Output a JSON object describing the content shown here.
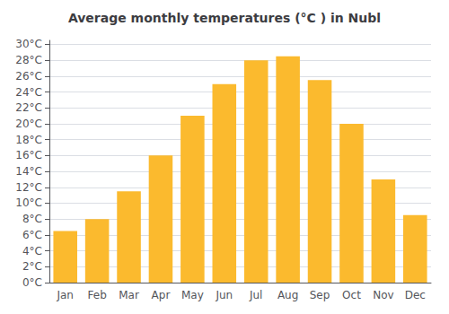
{
  "chart_data": {
    "type": "bar",
    "title": "Average monthly temperatures (°C ) in Nubl",
    "categories": [
      "Jan",
      "Feb",
      "Mar",
      "Apr",
      "May",
      "Jun",
      "Jul",
      "Aug",
      "Sep",
      "Oct",
      "Nov",
      "Dec"
    ],
    "values": [
      6.5,
      8.0,
      11.5,
      16.0,
      21.0,
      25.0,
      28.0,
      28.5,
      25.5,
      20.0,
      13.0,
      8.5
    ],
    "color": "#FBBA2E",
    "ylim": [
      0,
      30.5
    ],
    "yticks": [
      {
        "value": 0,
        "label": "0°C"
      },
      {
        "value": 2,
        "label": "2°C"
      },
      {
        "value": 4,
        "label": "4°C"
      },
      {
        "value": 6,
        "label": "6°C"
      },
      {
        "value": 8,
        "label": "8°C"
      },
      {
        "value": 10,
        "label": "10°C"
      },
      {
        "value": 12,
        "label": "12°C"
      },
      {
        "value": 14,
        "label": "14°C"
      },
      {
        "value": 16,
        "label": "16°C"
      },
      {
        "value": 18,
        "label": "18°C"
      },
      {
        "value": 20,
        "label": "20°C"
      },
      {
        "value": 22,
        "label": "22°C"
      },
      {
        "value": 24,
        "label": "24°C"
      },
      {
        "value": 26,
        "label": "26°C"
      },
      {
        "value": 28,
        "label": "28°C"
      },
      {
        "value": 30,
        "label": "30°C"
      }
    ],
    "grid": true
  }
}
